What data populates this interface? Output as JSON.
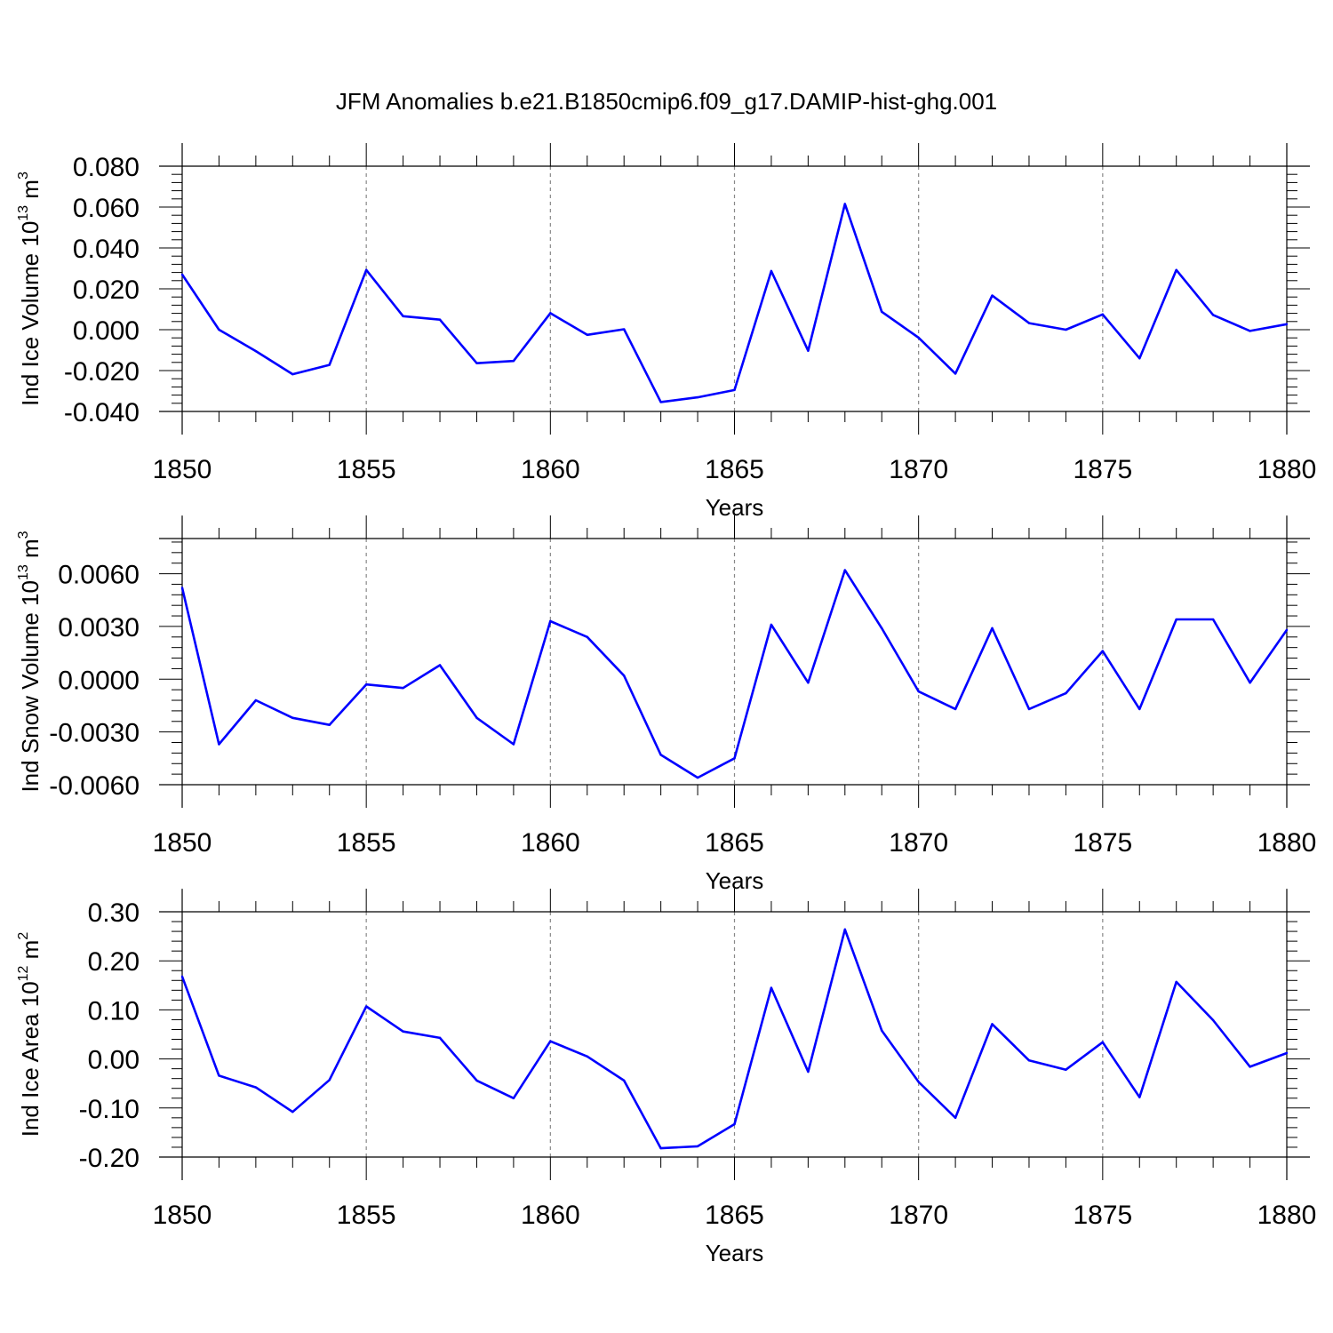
{
  "title": "JFM Anomalies b.e21.B1850cmip6.f09_g17.DAMIP-hist-ghg.001",
  "colors": {
    "series": "#0000ff",
    "axis": "#000000",
    "grid": "#888888"
  },
  "chart_data": [
    {
      "type": "line",
      "xlabel": "Years",
      "ylabel": {
        "text": "Ind Ice Volume 10",
        "exp": "13",
        "unit": " m",
        "unit_exp": "3"
      },
      "xlim": [
        1850,
        1880
      ],
      "ylim": [
        -0.04,
        0.08
      ],
      "xticks": [
        1850,
        1855,
        1860,
        1865,
        1870,
        1875,
        1880
      ],
      "yticks": [
        "0.080",
        "0.060",
        "0.040",
        "0.020",
        "0.000",
        "-0.020",
        "-0.040"
      ],
      "ytick_values": [
        0.08,
        0.06,
        0.04,
        0.02,
        0.0,
        -0.02,
        -0.04
      ],
      "grid": "vertical dashed at major x ticks",
      "x": [
        1850,
        1851,
        1852,
        1853,
        1854,
        1855,
        1856,
        1857,
        1858,
        1859,
        1860,
        1861,
        1862,
        1863,
        1864,
        1865,
        1866,
        1867,
        1868,
        1869,
        1870,
        1871,
        1872,
        1873,
        1874,
        1875,
        1876,
        1877,
        1878,
        1879,
        1880
      ],
      "y": [
        0.027,
        0.0,
        -0.0105,
        -0.0218,
        -0.0172,
        0.0292,
        0.0066,
        0.0049,
        -0.0164,
        -0.0153,
        0.0081,
        -0.0025,
        0.0002,
        -0.0354,
        -0.0331,
        -0.0295,
        0.0287,
        -0.0103,
        0.0615,
        0.0088,
        -0.0039,
        -0.0215,
        0.0167,
        0.0032,
        0.0,
        0.0075,
        -0.014,
        0.0292,
        0.0072,
        -0.0006,
        0.0027
      ]
    },
    {
      "type": "line",
      "xlabel": "Years",
      "ylabel": {
        "text": "Ind Snow Volume 10",
        "exp": "13",
        "unit": " m",
        "unit_exp": "3"
      },
      "xlim": [
        1850,
        1880
      ],
      "ylim": [
        -0.006,
        0.008
      ],
      "xticks": [
        1850,
        1855,
        1860,
        1865,
        1870,
        1875,
        1880
      ],
      "yticks": [
        "0.0060",
        "0.0030",
        "0.0000",
        "-0.0030",
        "-0.0060"
      ],
      "ytick_values": [
        0.006,
        0.003,
        0.0,
        -0.003,
        -0.006
      ],
      "grid": "vertical dashed at major x ticks",
      "x": [
        1850,
        1851,
        1852,
        1853,
        1854,
        1855,
        1856,
        1857,
        1858,
        1859,
        1860,
        1861,
        1862,
        1863,
        1864,
        1865,
        1866,
        1867,
        1868,
        1869,
        1870,
        1871,
        1872,
        1873,
        1874,
        1875,
        1876,
        1877,
        1878,
        1879,
        1880
      ],
      "y": [
        0.0052,
        -0.0037,
        -0.0012,
        -0.0022,
        -0.0026,
        -0.0003,
        -0.0005,
        0.0008,
        -0.0022,
        -0.0037,
        0.0033,
        0.0024,
        0.0002,
        -0.0043,
        -0.0056,
        -0.0045,
        0.0031,
        -0.0002,
        0.0062,
        0.0029,
        -0.0007,
        -0.0017,
        0.0029,
        -0.0017,
        -0.0008,
        0.0016,
        -0.0017,
        0.0034,
        0.0034,
        -0.0002,
        0.0028
      ]
    },
    {
      "type": "line",
      "xlabel": "Years",
      "ylabel": {
        "text": "Ind Ice Area 10",
        "exp": "12",
        "unit": " m",
        "unit_exp": "2"
      },
      "xlim": [
        1850,
        1880
      ],
      "ylim": [
        -0.2,
        0.3
      ],
      "xticks": [
        1850,
        1855,
        1860,
        1865,
        1870,
        1875,
        1880
      ],
      "yticks": [
        "0.30",
        "0.20",
        "0.10",
        "0.00",
        "-0.10",
        "-0.20"
      ],
      "ytick_values": [
        0.3,
        0.2,
        0.1,
        0.0,
        -0.1,
        -0.2
      ],
      "grid": "vertical dashed at major x ticks",
      "x": [
        1850,
        1851,
        1852,
        1853,
        1854,
        1855,
        1856,
        1857,
        1858,
        1859,
        1860,
        1861,
        1862,
        1863,
        1864,
        1865,
        1866,
        1867,
        1868,
        1869,
        1870,
        1871,
        1872,
        1873,
        1874,
        1875,
        1876,
        1877,
        1878,
        1879,
        1880
      ],
      "y": [
        0.168,
        -0.034,
        -0.058,
        -0.108,
        -0.043,
        0.107,
        0.056,
        0.043,
        -0.044,
        -0.08,
        0.036,
        0.005,
        -0.044,
        -0.182,
        -0.178,
        -0.133,
        0.145,
        -0.026,
        0.264,
        0.058,
        -0.047,
        -0.12,
        0.071,
        -0.003,
        -0.022,
        0.034,
        -0.078,
        0.157,
        0.079,
        -0.016,
        0.012
      ]
    }
  ]
}
